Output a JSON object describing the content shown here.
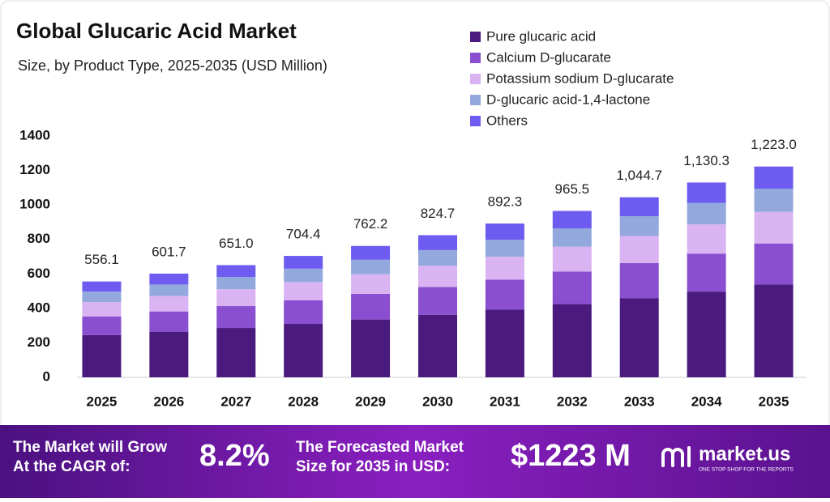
{
  "chart_data": {
    "type": "stacked-bar",
    "title": "Global Glucaric Acid Market",
    "subtitle": "Size, by Product Type, 2025-2035 (USD Million)",
    "categories": [
      "2025",
      "2026",
      "2027",
      "2028",
      "2029",
      "2030",
      "2031",
      "2032",
      "2033",
      "2034",
      "2035"
    ],
    "series": [
      {
        "name": "Pure glucaric acid",
        "color": "#4a1a7e",
        "values": [
          244.7,
          264.7,
          286.4,
          309.9,
          335.4,
          362.9,
          392.6,
          424.8,
          459.7,
          497.3,
          538.1
        ]
      },
      {
        "name": "Calcium D-glucarate",
        "color": "#8a4fd0",
        "values": [
          108.4,
          117.3,
          126.9,
          137.4,
          148.6,
          160.8,
          174.0,
          188.3,
          203.7,
          220.4,
          238.5
        ]
      },
      {
        "name": "Potassium sodium D-glucarate",
        "color": "#d9b3f2",
        "values": [
          83.4,
          90.3,
          97.7,
          105.7,
          114.3,
          123.7,
          133.8,
          144.8,
          156.7,
          169.5,
          183.5
        ]
      },
      {
        "name": "D-glucaric acid-1,4-lactone",
        "color": "#93a9de",
        "values": [
          61.2,
          66.2,
          71.6,
          77.5,
          83.8,
          90.7,
          98.2,
          106.2,
          114.9,
          124.3,
          134.5
        ]
      },
      {
        "name": "Others",
        "color": "#6e5cf0",
        "values": [
          58.4,
          63.2,
          68.4,
          73.9,
          80.1,
          86.6,
          93.7,
          101.4,
          109.7,
          118.8,
          128.4
        ]
      }
    ],
    "totals": {
      "values": [
        556.1,
        601.7,
        651.0,
        704.4,
        762.2,
        824.7,
        892.3,
        965.5,
        1044.7,
        1130.3,
        1223.0
      ],
      "value_labels": [
        "556.1",
        "601.7",
        "651.0",
        "704.4",
        "762.2",
        "824.7",
        "892.3",
        "965.5",
        "1,044.7",
        "1,130.3",
        "1,223.0"
      ]
    },
    "ylim": [
      0,
      1400
    ],
    "yticks": [
      0,
      200,
      400,
      600,
      800,
      1000,
      1200,
      1400
    ],
    "grid": false,
    "legend": "top-right"
  },
  "footer": {
    "cagr_text": [
      "The Market will Grow",
      "At the CAGR of:"
    ],
    "cagr": "8.2%",
    "size_text": [
      "The Forecasted Market",
      "Size for 2035 in USD:"
    ],
    "size": "$1223 M",
    "brand": "market.us",
    "tagline": "ONE STOP SHOP FOR THE REPORTS"
  }
}
